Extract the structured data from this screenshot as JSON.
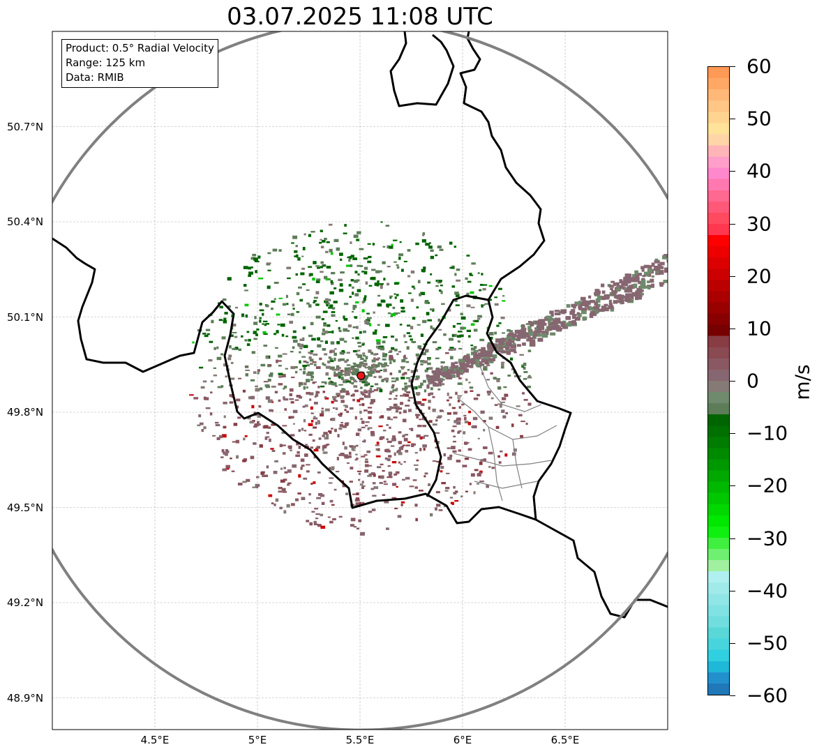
{
  "title": "03.07.2025 11:08 UTC",
  "info": {
    "product": "Product: 0.5° Radial Velocity",
    "range": "Range: 125 km",
    "data": "Data: RMIB"
  },
  "map": {
    "lon_range": [
      4.0,
      7.0
    ],
    "lat_range": [
      48.8,
      51.0
    ],
    "lat_ticks": [
      {
        "value": 50.7,
        "label": "50.7°N"
      },
      {
        "value": 50.4,
        "label": "50.4°N"
      },
      {
        "value": 50.1,
        "label": "50.1°N"
      },
      {
        "value": 49.8,
        "label": "49.8°N"
      },
      {
        "value": 49.5,
        "label": "49.5°N"
      },
      {
        "value": 49.2,
        "label": "49.2°N"
      },
      {
        "value": 48.9,
        "label": "48.9°N"
      }
    ],
    "lon_ticks": [
      {
        "value": 4.5,
        "label": "4.5°E"
      },
      {
        "value": 5.0,
        "label": "5°E"
      },
      {
        "value": 5.5,
        "label": "5.5°E"
      },
      {
        "value": 6.0,
        "label": "6°E"
      },
      {
        "value": 6.5,
        "label": "6.5°E"
      }
    ],
    "radar_site": {
      "lon": 5.505,
      "lat": 49.915,
      "color": "#e8191a"
    },
    "range_ring_color": "#808080",
    "grid": true
  },
  "colorbar": {
    "unit": "m/s",
    "min": -60,
    "max": 60,
    "ticks": [
      {
        "value": 60,
        "label": "60"
      },
      {
        "value": 50,
        "label": "50"
      },
      {
        "value": 40,
        "label": "40"
      },
      {
        "value": 30,
        "label": "30"
      },
      {
        "value": 20,
        "label": "20"
      },
      {
        "value": 10,
        "label": "10"
      },
      {
        "value": 0,
        "label": "0"
      },
      {
        "value": -10,
        "label": "−10"
      },
      {
        "value": -20,
        "label": "−20"
      },
      {
        "value": -30,
        "label": "−30"
      },
      {
        "value": -40,
        "label": "−40"
      },
      {
        "value": -50,
        "label": "−50"
      },
      {
        "value": -60,
        "label": "−60"
      }
    ],
    "colors_top_to_bottom": [
      "#ff9955",
      "#ffa866",
      "#ffb877",
      "#ffc685",
      "#ffd490",
      "#ffe39a",
      "#ffd5a8",
      "#ffb5b8",
      "#ff9ec8",
      "#ff88cc",
      "#ff78b0",
      "#ff6890",
      "#ff5878",
      "#ff4a60",
      "#ff3850",
      "#ff0000",
      "#ee0000",
      "#dd0000",
      "#cc0000",
      "#bb0000",
      "#aa0000",
      "#990000",
      "#880000",
      "#770000",
      "#883c44",
      "#8a4a52",
      "#8a5862",
      "#866670",
      "#857a76",
      "#6f8a6c",
      "#5d7d59",
      "#006400",
      "#007000",
      "#007c00",
      "#008a00",
      "#009800",
      "#00a800",
      "#00b800",
      "#00c800",
      "#00d800",
      "#00e800",
      "#10f010",
      "#40f040",
      "#70f070",
      "#a0f0a0",
      "#b0f0f0",
      "#a0eaea",
      "#90e6e6",
      "#80e2e2",
      "#70dede",
      "#5ad8d8",
      "#48d4dc",
      "#30d0e0",
      "#20b8d8",
      "#2290cc",
      "#2078b8"
    ]
  }
}
